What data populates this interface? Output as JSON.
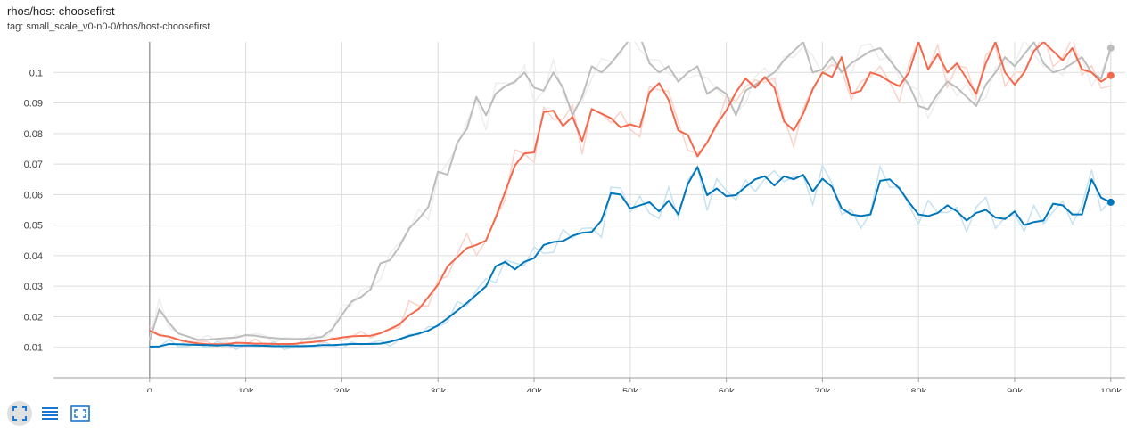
{
  "header": {
    "title": "rhos/host-choosefirst",
    "subtitle": "tag: small_scale_v0-n0-0/rhos/host-choosefirst"
  },
  "toolbar": {
    "buttons": [
      {
        "name": "fit-domain-button",
        "icon": "fit-to-domain-icon",
        "active": true
      },
      {
        "name": "toggle-log-scale-button",
        "icon": "lines-icon",
        "active": false
      },
      {
        "name": "expand-chart-button",
        "icon": "expand-icon",
        "active": false
      }
    ]
  },
  "chart_data": {
    "type": "line",
    "xlim": [
      -10000,
      101500
    ],
    "ylim": [
      0,
      0.11
    ],
    "x_ticks": [
      0,
      10000,
      20000,
      30000,
      40000,
      50000,
      60000,
      70000,
      80000,
      90000,
      100000
    ],
    "x_tick_labels": [
      "0",
      "10k",
      "20k",
      "30k",
      "40k",
      "50k",
      "60k",
      "70k",
      "80k",
      "90k",
      "100k"
    ],
    "y_ticks": [
      0.01,
      0.02,
      0.03,
      0.04,
      0.05,
      0.06,
      0.07,
      0.08,
      0.09,
      0.1
    ],
    "y_tick_labels": [
      "0.01",
      "0.02",
      "0.03",
      "0.04",
      "0.05",
      "0.06",
      "0.07",
      "0.08",
      "0.09",
      "0.1"
    ],
    "grid": true,
    "series": [
      {
        "color": "#bdbdbd",
        "raw_color": "#eeeeee",
        "x": [
          0,
          1000,
          2000,
          3000,
          4000,
          5000,
          6000,
          7000,
          8000,
          9000,
          10000,
          11000,
          12000,
          13000,
          14000,
          15000,
          16000,
          17000,
          18000,
          19000,
          20000,
          21000,
          22000,
          23000,
          24000,
          25000,
          26000,
          27000,
          28000,
          29000,
          30000,
          31000,
          32000,
          33000,
          34000,
          35000,
          36000,
          37000,
          38000,
          39000,
          40000,
          41000,
          42000,
          43000,
          44000,
          45000,
          46000,
          47000,
          48000,
          49000,
          50000,
          51000,
          52000,
          53000,
          54000,
          55000,
          56000,
          57000,
          58000,
          59000,
          60000,
          61000,
          62000,
          63000,
          64000,
          65000,
          66000,
          67000,
          68000,
          69000,
          70000,
          71000,
          72000,
          73000,
          74000,
          75000,
          76000,
          77000,
          78000,
          79000,
          80000,
          81000,
          82000,
          83000,
          84000,
          85000,
          86000,
          87000,
          88000,
          89000,
          90000,
          91000,
          92000,
          93000,
          94000,
          95000,
          96000,
          97000,
          98000,
          99000,
          100000
        ],
        "y": [
          0.012,
          0.0225,
          0.018,
          0.0145,
          0.0135,
          0.0125,
          0.0125,
          0.0128,
          0.013,
          0.0132,
          0.014,
          0.0138,
          0.0133,
          0.013,
          0.0128,
          0.0127,
          0.0128,
          0.013,
          0.0135,
          0.016,
          0.0205,
          0.025,
          0.0265,
          0.029,
          0.0375,
          0.0385,
          0.043,
          0.049,
          0.052,
          0.056,
          0.0675,
          0.0665,
          0.077,
          0.0815,
          0.092,
          0.086,
          0.093,
          0.0955,
          0.097,
          0.1,
          0.095,
          0.094,
          0.1,
          0.095,
          0.086,
          0.092,
          0.102,
          0.1,
          0.103,
          0.107,
          0.111,
          0.112,
          0.103,
          0.1,
          0.102,
          0.097,
          0.1,
          0.102,
          0.093,
          0.095,
          0.093,
          0.086,
          0.094,
          0.096,
          0.098,
          0.1,
          0.104,
          0.107,
          0.11,
          0.1,
          0.101,
          0.105,
          0.1,
          0.103,
          0.105,
          0.107,
          0.108,
          0.104,
          0.1,
          0.096,
          0.089,
          0.088,
          0.093,
          0.097,
          0.095,
          0.092,
          0.089,
          0.096,
          0.1,
          0.105,
          0.102,
          0.106,
          0.11,
          0.103,
          0.1,
          0.101,
          0.103,
          0.105,
          0.1,
          0.098,
          0.108
        ]
      },
      {
        "color": "#f4694c",
        "raw_color": "#fbd3ca",
        "x": [
          0,
          1000,
          2000,
          3000,
          4000,
          5000,
          6000,
          7000,
          8000,
          9000,
          10000,
          11000,
          12000,
          13000,
          14000,
          15000,
          16000,
          17000,
          18000,
          19000,
          20000,
          21000,
          22000,
          23000,
          24000,
          25000,
          26000,
          27000,
          28000,
          29000,
          30000,
          31000,
          32000,
          33000,
          34000,
          35000,
          36000,
          37000,
          38000,
          39000,
          40000,
          41000,
          42000,
          43000,
          44000,
          45000,
          46000,
          47000,
          48000,
          49000,
          50000,
          51000,
          52000,
          53000,
          54000,
          55000,
          56000,
          57000,
          58000,
          59000,
          60000,
          61000,
          62000,
          63000,
          64000,
          65000,
          66000,
          67000,
          68000,
          69000,
          70000,
          71000,
          72000,
          73000,
          74000,
          75000,
          76000,
          77000,
          78000,
          79000,
          80000,
          81000,
          82000,
          83000,
          84000,
          85000,
          86000,
          87000,
          88000,
          89000,
          90000,
          91000,
          92000,
          93000,
          94000,
          95000,
          96000,
          97000,
          98000,
          99000,
          100000
        ],
        "y": [
          0.0155,
          0.014,
          0.0135,
          0.0125,
          0.0118,
          0.0113,
          0.011,
          0.011,
          0.011,
          0.0115,
          0.0114,
          0.0112,
          0.0112,
          0.0111,
          0.0111,
          0.0111,
          0.0115,
          0.0117,
          0.0121,
          0.0127,
          0.0132,
          0.0136,
          0.0137,
          0.0138,
          0.0146,
          0.016,
          0.0175,
          0.0205,
          0.0225,
          0.0265,
          0.0305,
          0.0365,
          0.0395,
          0.0425,
          0.0435,
          0.045,
          0.0525,
          0.061,
          0.0695,
          0.0735,
          0.0738,
          0.087,
          0.0875,
          0.0825,
          0.0855,
          0.0775,
          0.088,
          0.0865,
          0.085,
          0.082,
          0.083,
          0.082,
          0.0935,
          0.0965,
          0.091,
          0.081,
          0.0795,
          0.0725,
          0.077,
          0.083,
          0.0875,
          0.0935,
          0.098,
          0.095,
          0.0985,
          0.095,
          0.084,
          0.081,
          0.0865,
          0.0945,
          0.1,
          0.0985,
          0.105,
          0.093,
          0.094,
          0.1,
          0.099,
          0.097,
          0.0955,
          0.1,
          0.11,
          0.101,
          0.106,
          0.1,
          0.103,
          0.098,
          0.093,
          0.103,
          0.11,
          0.1,
          0.096,
          0.1,
          0.107,
          0.11,
          0.107,
          0.104,
          0.108,
          0.101,
          0.1,
          0.097,
          0.099
        ]
      },
      {
        "color": "#0077bb",
        "raw_color": "#c6e2f1",
        "x": [
          0,
          1000,
          2000,
          3000,
          4000,
          5000,
          6000,
          7000,
          8000,
          9000,
          10000,
          11000,
          12000,
          13000,
          14000,
          15000,
          16000,
          17000,
          18000,
          19000,
          20000,
          21000,
          22000,
          23000,
          24000,
          25000,
          26000,
          27000,
          28000,
          29000,
          30000,
          31000,
          32000,
          33000,
          34000,
          35000,
          36000,
          37000,
          38000,
          39000,
          40000,
          41000,
          42000,
          43000,
          44000,
          45000,
          46000,
          47000,
          48000,
          49000,
          50000,
          51000,
          52000,
          53000,
          54000,
          55000,
          56000,
          57000,
          58000,
          59000,
          60000,
          61000,
          62000,
          63000,
          64000,
          65000,
          66000,
          67000,
          68000,
          69000,
          70000,
          71000,
          72000,
          73000,
          74000,
          75000,
          76000,
          77000,
          78000,
          79000,
          80000,
          81000,
          82000,
          83000,
          84000,
          85000,
          86000,
          87000,
          88000,
          89000,
          90000,
          91000,
          92000,
          93000,
          94000,
          95000,
          96000,
          97000,
          98000,
          99000,
          100000
        ],
        "y": [
          0.0102,
          0.0103,
          0.0111,
          0.011,
          0.0109,
          0.0108,
          0.0107,
          0.0106,
          0.0107,
          0.0106,
          0.0106,
          0.0106,
          0.0105,
          0.0104,
          0.0104,
          0.0104,
          0.0104,
          0.0105,
          0.0107,
          0.0107,
          0.0109,
          0.0111,
          0.0111,
          0.0111,
          0.0112,
          0.0118,
          0.0127,
          0.0137,
          0.0145,
          0.0155,
          0.0172,
          0.0195,
          0.022,
          0.0245,
          0.0272,
          0.03,
          0.0365,
          0.038,
          0.0355,
          0.038,
          0.0392,
          0.0435,
          0.0445,
          0.0448,
          0.0465,
          0.0475,
          0.0478,
          0.0515,
          0.0605,
          0.06,
          0.0555,
          0.0565,
          0.0575,
          0.0545,
          0.058,
          0.0535,
          0.0635,
          0.069,
          0.0598,
          0.062,
          0.0595,
          0.0598,
          0.0625,
          0.065,
          0.066,
          0.063,
          0.066,
          0.065,
          0.0665,
          0.061,
          0.0652,
          0.0625,
          0.0555,
          0.0535,
          0.053,
          0.0535,
          0.0645,
          0.065,
          0.062,
          0.0575,
          0.0535,
          0.053,
          0.054,
          0.0565,
          0.0545,
          0.0515,
          0.054,
          0.055,
          0.0525,
          0.052,
          0.0545,
          0.05,
          0.051,
          0.0515,
          0.057,
          0.0565,
          0.0535,
          0.0535,
          0.065,
          0.059,
          0.0575
        ]
      }
    ]
  }
}
